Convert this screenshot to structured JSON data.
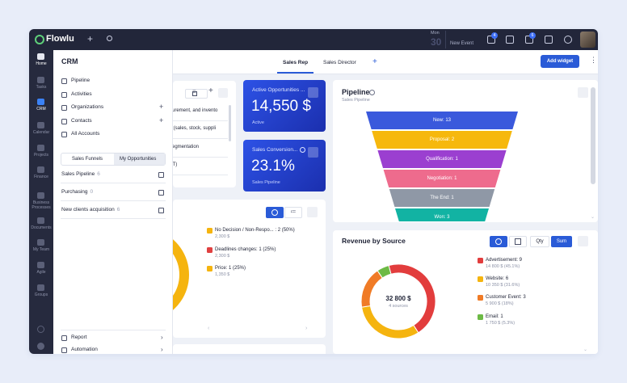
{
  "topbar": {
    "brand": "Flowlu",
    "day": "Mon",
    "date": "30",
    "new_event": "New Event",
    "badges": [
      "4",
      "6"
    ]
  },
  "sidebar": [
    "Home",
    "Tasks",
    "CRM",
    "Calendar",
    "Projects",
    "Finance",
    "Business Processes",
    "Documents",
    "My Team",
    "Agile",
    "Groups"
  ],
  "crm": {
    "title": "CRM",
    "menu": [
      "Pipeline",
      "Activities",
      "Organizations",
      "Contacts",
      "All Accounts"
    ],
    "tabs": [
      "Sales Funnels",
      "My Opportunities"
    ],
    "funnels": [
      {
        "name": "Sales Pipeline",
        "count": 6
      },
      {
        "name": "Purchasing",
        "count": 0
      },
      {
        "name": "New clients acquisition",
        "count": 6
      }
    ],
    "footer": [
      "Report",
      "Automation"
    ]
  },
  "dashboard": {
    "tabs": [
      "Sales Rep",
      "Sales Director"
    ],
    "add_widget": "Add widget",
    "list_rows": [
      "curement, and invento",
      "s (sales, stock, suppli",
      "segmentation",
      "AT)"
    ],
    "cards": [
      {
        "title": "Active Opportunities ...",
        "value": "14,550 $",
        "caption": "Active"
      },
      {
        "title": "Sales Conversion...",
        "value": "23.1%",
        "caption": "Sales Pipeline"
      }
    ],
    "pipeline": {
      "title": "Pipeline",
      "subtitle": "Sales Pipeline",
      "stages": [
        "New: 13",
        "Proposal: 2",
        "Qualification: 1",
        "Negotiation: 1",
        "The End: 1",
        "Won: 3"
      ]
    },
    "reasons": [
      {
        "label": "No Decision / Non-Respo... : 2 (50%)",
        "amount": "2,300 $",
        "color": "#f5b40f"
      },
      {
        "label": "Deadlines changes: 1 (25%)",
        "amount": "2,300 $",
        "color": "#e04040"
      },
      {
        "label": "Price: 1 (25%)",
        "amount": "1,350 $",
        "color": "#f5b40f"
      }
    ],
    "revenue": {
      "title": "Revenue by Source",
      "toggles": [
        "Qty",
        "Sum"
      ],
      "total": "32 800 $",
      "total_caption": "4 sources",
      "segments": [
        {
          "label": "Advertisement: 9",
          "amount": 14800,
          "amount_label": "14 800 $ (45.1%)",
          "color": "#e23d3d"
        },
        {
          "label": "Website: 6",
          "amount": 10350,
          "amount_label": "10 350 $ (31.6%)",
          "color": "#f5b40f"
        },
        {
          "label": "Customer Event: 3",
          "amount": 5900,
          "amount_label": "5 900 $ (18%)",
          "color": "#f07b26"
        },
        {
          "label": "Email: 1",
          "amount": 1750,
          "amount_label": "1 750 $ (5.3%)",
          "color": "#6dba45"
        }
      ]
    }
  }
}
